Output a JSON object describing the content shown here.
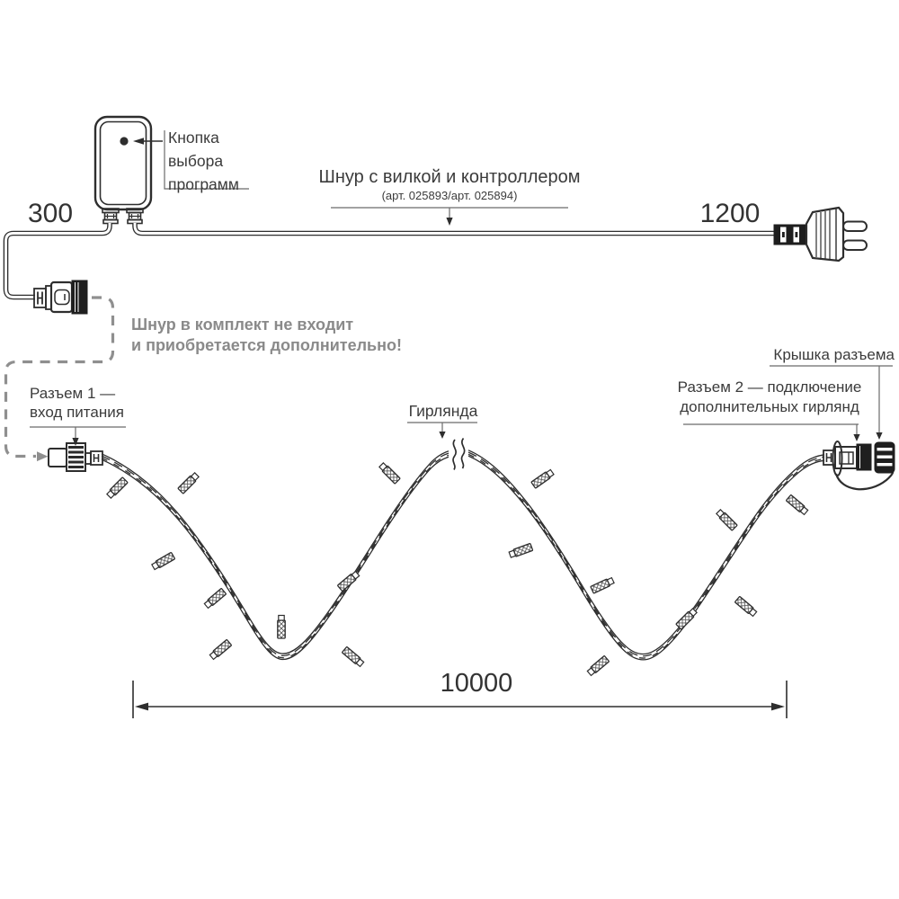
{
  "labels": {
    "program_button": "Кнопка\nвыбора\nпрограмм",
    "cord_title": "Шнур с вилкой и контроллером",
    "cord_articles": "(арт. 025893/арт. 025894)",
    "note": "Шнур в комплект не входит\nи приобретается дополнительно!",
    "connector1": "Разъем 1 —\nвход питания",
    "garland": "Гирлянда",
    "connector2": "Разъем 2 — подключение\nдополнительных гирлянд",
    "connector_cap": "Крышка разъема"
  },
  "dimensions": {
    "cord_left_mm": "300",
    "cord_right_mm": "1200",
    "garland_length_mm": "10000"
  },
  "colors": {
    "line": "#2e2e2e",
    "text": "#3b3b3b",
    "note_gray": "#8a8a8a",
    "leader_gray": "#6b6b6b",
    "dashed_gray": "#8f8f8f",
    "background": "#ffffff"
  }
}
